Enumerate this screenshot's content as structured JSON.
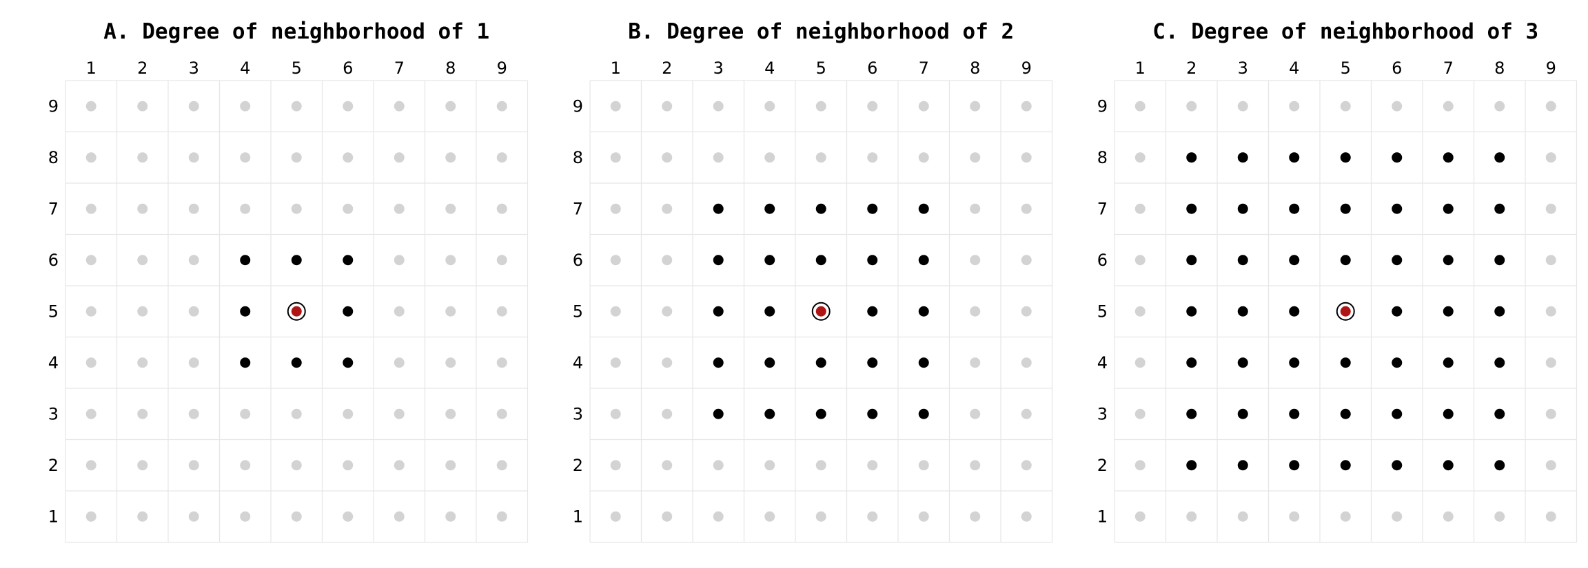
{
  "colors": {
    "inactive_point": "#d3d3d3",
    "neighbor_point": "#000000",
    "center_point": "#b01515",
    "center_ring": "#000000",
    "grid": "#e6e6e6"
  },
  "chart_data": [
    {
      "type": "scatter",
      "title": "A. Degree of neighborhood of 1",
      "xlabel": "",
      "ylabel": "",
      "x_ticks": [
        1,
        2,
        3,
        4,
        5,
        6,
        7,
        8,
        9
      ],
      "y_ticks": [
        9,
        8,
        7,
        6,
        5,
        4,
        3,
        2,
        1
      ],
      "grid_size": 9,
      "center": [
        5,
        5
      ],
      "degree": 1,
      "neighbor_range": [
        4,
        6
      ]
    },
    {
      "type": "scatter",
      "title": "B. Degree of neighborhood of 2",
      "xlabel": "",
      "ylabel": "",
      "x_ticks": [
        1,
        2,
        3,
        4,
        5,
        6,
        7,
        8,
        9
      ],
      "y_ticks": [
        9,
        8,
        7,
        6,
        5,
        4,
        3,
        2,
        1
      ],
      "grid_size": 9,
      "center": [
        5,
        5
      ],
      "degree": 2,
      "neighbor_range": [
        3,
        7
      ]
    },
    {
      "type": "scatter",
      "title": "C. Degree of neighborhood of 3",
      "xlabel": "",
      "ylabel": "",
      "x_ticks": [
        1,
        2,
        3,
        4,
        5,
        6,
        7,
        8,
        9
      ],
      "y_ticks": [
        9,
        8,
        7,
        6,
        5,
        4,
        3,
        2,
        1
      ],
      "grid_size": 9,
      "center": [
        5,
        5
      ],
      "degree": 3,
      "neighbor_range": [
        2,
        8
      ]
    }
  ]
}
